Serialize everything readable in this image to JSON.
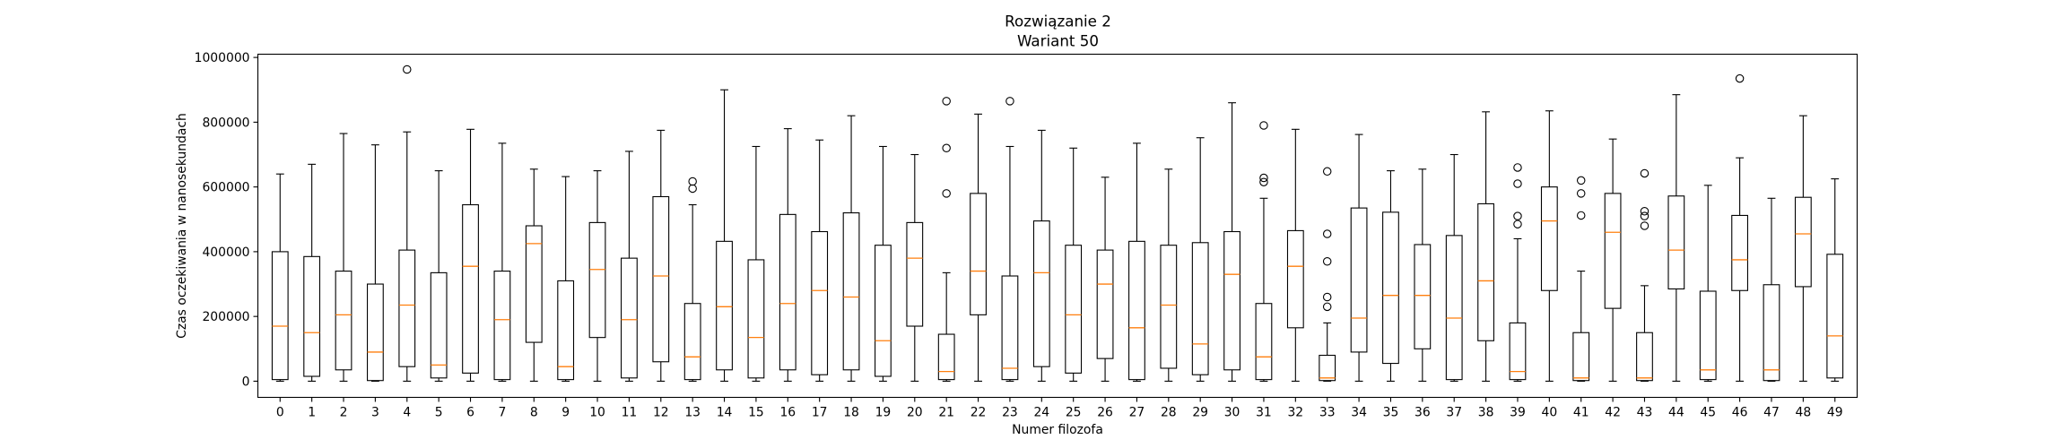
{
  "chart_data": {
    "type": "box",
    "title_lines": [
      "Rozwiązanie 2",
      "Wariant 50"
    ],
    "xlabel": "Numer filozofa",
    "ylabel": "Czas oczekiwania w nanosekundach",
    "ylim": [
      -50000,
      1010000
    ],
    "yticks": [
      0,
      200000,
      400000,
      600000,
      800000,
      1000000
    ],
    "ytick_labels": [
      "0",
      "200000",
      "400000",
      "600000",
      "800000",
      "1000000"
    ],
    "grid": false,
    "colors": {
      "box": "#000000",
      "median": "#ff7f0e",
      "flier": "#000000"
    },
    "boxes": [
      {
        "label": "0",
        "whislo": 0,
        "q1": 5000,
        "med": 170000,
        "q3": 400000,
        "whishi": 640000,
        "fliers": []
      },
      {
        "label": "1",
        "whislo": 0,
        "q1": 15000,
        "med": 150000,
        "q3": 385000,
        "whishi": 670000,
        "fliers": []
      },
      {
        "label": "2",
        "whislo": 0,
        "q1": 35000,
        "med": 205000,
        "q3": 340000,
        "whishi": 765000,
        "fliers": []
      },
      {
        "label": "3",
        "whislo": 0,
        "q1": 2000,
        "med": 90000,
        "q3": 300000,
        "whishi": 730000,
        "fliers": []
      },
      {
        "label": "4",
        "whislo": 0,
        "q1": 45000,
        "med": 235000,
        "q3": 405000,
        "whishi": 770000,
        "fliers": [
          963000
        ]
      },
      {
        "label": "5",
        "whislo": 0,
        "q1": 10000,
        "med": 50000,
        "q3": 335000,
        "whishi": 650000,
        "fliers": []
      },
      {
        "label": "6",
        "whislo": 0,
        "q1": 25000,
        "med": 355000,
        "q3": 545000,
        "whishi": 778000,
        "fliers": []
      },
      {
        "label": "7",
        "whislo": 0,
        "q1": 5000,
        "med": 190000,
        "q3": 340000,
        "whishi": 735000,
        "fliers": []
      },
      {
        "label": "8",
        "whislo": 0,
        "q1": 120000,
        "med": 425000,
        "q3": 480000,
        "whishi": 655000,
        "fliers": []
      },
      {
        "label": "9",
        "whislo": 0,
        "q1": 5000,
        "med": 45000,
        "q3": 310000,
        "whishi": 632000,
        "fliers": []
      },
      {
        "label": "10",
        "whislo": 0,
        "q1": 135000,
        "med": 345000,
        "q3": 490000,
        "whishi": 650000,
        "fliers": []
      },
      {
        "label": "11",
        "whislo": 0,
        "q1": 10000,
        "med": 190000,
        "q3": 380000,
        "whishi": 710000,
        "fliers": []
      },
      {
        "label": "12",
        "whislo": 0,
        "q1": 60000,
        "med": 325000,
        "q3": 570000,
        "whishi": 775000,
        "fliers": []
      },
      {
        "label": "13",
        "whislo": 0,
        "q1": 5000,
        "med": 75000,
        "q3": 240000,
        "whishi": 545000,
        "fliers": [
          595000,
          617000
        ]
      },
      {
        "label": "14",
        "whislo": 0,
        "q1": 35000,
        "med": 230000,
        "q3": 432000,
        "whishi": 900000,
        "fliers": []
      },
      {
        "label": "15",
        "whislo": 0,
        "q1": 10000,
        "med": 135000,
        "q3": 375000,
        "whishi": 725000,
        "fliers": []
      },
      {
        "label": "16",
        "whislo": 0,
        "q1": 35000,
        "med": 240000,
        "q3": 515000,
        "whishi": 780000,
        "fliers": []
      },
      {
        "label": "17",
        "whislo": 0,
        "q1": 20000,
        "med": 280000,
        "q3": 462000,
        "whishi": 745000,
        "fliers": []
      },
      {
        "label": "18",
        "whislo": 0,
        "q1": 35000,
        "med": 260000,
        "q3": 520000,
        "whishi": 820000,
        "fliers": []
      },
      {
        "label": "19",
        "whislo": 0,
        "q1": 15000,
        "med": 125000,
        "q3": 420000,
        "whishi": 725000,
        "fliers": []
      },
      {
        "label": "20",
        "whislo": 0,
        "q1": 170000,
        "med": 380000,
        "q3": 490000,
        "whishi": 700000,
        "fliers": []
      },
      {
        "label": "21",
        "whislo": 0,
        "q1": 5000,
        "med": 30000,
        "q3": 145000,
        "whishi": 335000,
        "fliers": [
          580000,
          720000,
          865000
        ]
      },
      {
        "label": "22",
        "whislo": 0,
        "q1": 205000,
        "med": 340000,
        "q3": 580000,
        "whishi": 825000,
        "fliers": []
      },
      {
        "label": "23",
        "whislo": 0,
        "q1": 5000,
        "med": 40000,
        "q3": 325000,
        "whishi": 725000,
        "fliers": [
          865000
        ]
      },
      {
        "label": "24",
        "whislo": 0,
        "q1": 45000,
        "med": 335000,
        "q3": 495000,
        "whishi": 775000,
        "fliers": []
      },
      {
        "label": "25",
        "whislo": 0,
        "q1": 25000,
        "med": 205000,
        "q3": 420000,
        "whishi": 720000,
        "fliers": []
      },
      {
        "label": "26",
        "whislo": 0,
        "q1": 70000,
        "med": 300000,
        "q3": 405000,
        "whishi": 630000,
        "fliers": []
      },
      {
        "label": "27",
        "whislo": 0,
        "q1": 5000,
        "med": 165000,
        "q3": 432000,
        "whishi": 735000,
        "fliers": []
      },
      {
        "label": "28",
        "whislo": 0,
        "q1": 40000,
        "med": 235000,
        "q3": 420000,
        "whishi": 655000,
        "fliers": []
      },
      {
        "label": "29",
        "whislo": 0,
        "q1": 20000,
        "med": 115000,
        "q3": 428000,
        "whishi": 752000,
        "fliers": []
      },
      {
        "label": "30",
        "whislo": 0,
        "q1": 35000,
        "med": 330000,
        "q3": 462000,
        "whishi": 860000,
        "fliers": []
      },
      {
        "label": "31",
        "whislo": 0,
        "q1": 5000,
        "med": 75000,
        "q3": 240000,
        "whishi": 565000,
        "fliers": [
          615000,
          628000,
          790000
        ]
      },
      {
        "label": "32",
        "whislo": 0,
        "q1": 165000,
        "med": 355000,
        "q3": 465000,
        "whishi": 778000,
        "fliers": []
      },
      {
        "label": "33",
        "whislo": 0,
        "q1": 2000,
        "med": 10000,
        "q3": 80000,
        "whishi": 180000,
        "fliers": [
          230000,
          260000,
          370000,
          455000,
          648000
        ]
      },
      {
        "label": "34",
        "whislo": 0,
        "q1": 90000,
        "med": 195000,
        "q3": 535000,
        "whishi": 762000,
        "fliers": []
      },
      {
        "label": "35",
        "whislo": 0,
        "q1": 55000,
        "med": 265000,
        "q3": 522000,
        "whishi": 650000,
        "fliers": []
      },
      {
        "label": "36",
        "whislo": 0,
        "q1": 100000,
        "med": 265000,
        "q3": 422000,
        "whishi": 655000,
        "fliers": []
      },
      {
        "label": "37",
        "whislo": 0,
        "q1": 5000,
        "med": 195000,
        "q3": 450000,
        "whishi": 700000,
        "fliers": []
      },
      {
        "label": "38",
        "whislo": 0,
        "q1": 125000,
        "med": 310000,
        "q3": 548000,
        "whishi": 832000,
        "fliers": []
      },
      {
        "label": "39",
        "whislo": 0,
        "q1": 5000,
        "med": 30000,
        "q3": 180000,
        "whishi": 440000,
        "fliers": [
          485000,
          510000,
          610000,
          660000
        ]
      },
      {
        "label": "40",
        "whislo": 0,
        "q1": 280000,
        "med": 495000,
        "q3": 600000,
        "whishi": 835000,
        "fliers": []
      },
      {
        "label": "41",
        "whislo": 0,
        "q1": 2000,
        "med": 10000,
        "q3": 150000,
        "whishi": 340000,
        "fliers": [
          512000,
          580000,
          620000
        ]
      },
      {
        "label": "42",
        "whislo": 0,
        "q1": 225000,
        "med": 460000,
        "q3": 580000,
        "whishi": 748000,
        "fliers": []
      },
      {
        "label": "43",
        "whislo": 0,
        "q1": 2000,
        "med": 10000,
        "q3": 150000,
        "whishi": 295000,
        "fliers": [
          480000,
          510000,
          525000,
          642000
        ]
      },
      {
        "label": "44",
        "whislo": 0,
        "q1": 285000,
        "med": 405000,
        "q3": 572000,
        "whishi": 885000,
        "fliers": []
      },
      {
        "label": "45",
        "whislo": 0,
        "q1": 5000,
        "med": 35000,
        "q3": 278000,
        "whishi": 605000,
        "fliers": []
      },
      {
        "label": "46",
        "whislo": 0,
        "q1": 280000,
        "med": 375000,
        "q3": 512000,
        "whishi": 690000,
        "fliers": [
          935000
        ]
      },
      {
        "label": "47",
        "whislo": 0,
        "q1": 2000,
        "med": 35000,
        "q3": 298000,
        "whishi": 565000,
        "fliers": []
      },
      {
        "label": "48",
        "whislo": 0,
        "q1": 292000,
        "med": 455000,
        "q3": 568000,
        "whishi": 820000,
        "fliers": []
      },
      {
        "label": "49",
        "whislo": 0,
        "q1": 10000,
        "med": 140000,
        "q3": 392000,
        "whishi": 625000,
        "fliers": []
      }
    ]
  }
}
